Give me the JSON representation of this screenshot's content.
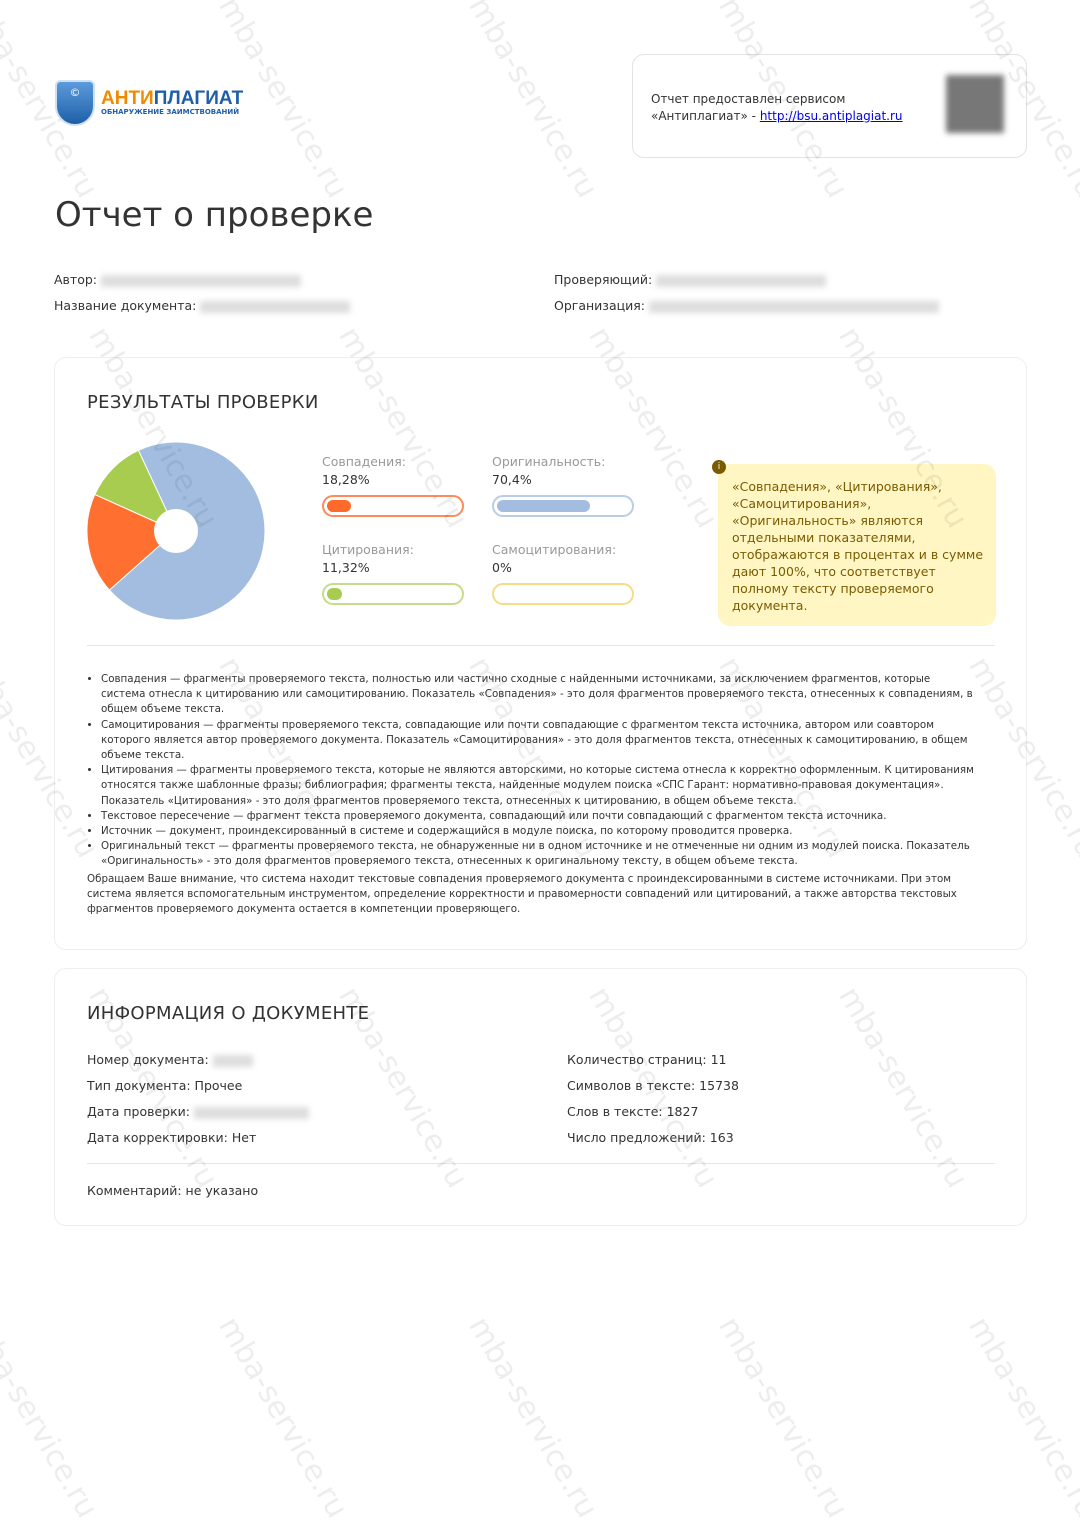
{
  "logo": {
    "name_orange": "АНТИ",
    "name_blue": "ПЛАГИАТ",
    "tagline": "ОБНАРУЖЕНИЕ ЗАИМСТВОВАНИЙ"
  },
  "provider": {
    "line1": "Отчет предоставлен сервисом",
    "line2": "«Антиплагиат» - ",
    "link": "http://bsu.antiplagiat.ru"
  },
  "title": "Отчет о проверке",
  "meta": {
    "author": "Автор:",
    "doc_name": "Название документа:",
    "checker": "Проверяющий:",
    "org": "Организация:"
  },
  "results": {
    "heading": "РЕЗУЛЬТАТЫ ПРОВЕРКИ",
    "metrics": [
      {
        "label": "Совпадения:",
        "value": "18,28%",
        "percent": 18.28,
        "color": "#ff6a2a",
        "border": "#ff8a5a"
      },
      {
        "label": "Оригинальность:",
        "value": "70,4%",
        "percent": 70.4,
        "color": "#a3bde0",
        "border": "#b8cde8"
      },
      {
        "label": "Цитирования:",
        "value": "11,32%",
        "percent": 11.32,
        "color": "#a8cc50",
        "border": "#c5dc8a"
      },
      {
        "label": "Самоцитирования:",
        "value": "0%",
        "percent": 0,
        "color": "#f5d86a",
        "border": "#f5dd88"
      }
    ],
    "pie_colors": {
      "match": "#ff7030",
      "original": "#a3bde0",
      "citation": "#a8cc50"
    },
    "note": "«Совпадения», «Цитирования», «Самоцитирования», «Оригинальность» являются отдельными показателями, отображаются в процентах и в сумме дают 100%, что соответствует полному тексту проверяемого документа.",
    "definitions": [
      "Совпадения — фрагменты проверяемого текста, полностью или частично сходные с найденными источниками, за исключением фрагментов, которые система отнесла к цитированию или самоцитированию. Показатель «Совпадения» - это доля фрагментов проверяемого текста, отнесенных к совпадениям, в общем объеме текста.",
      "Самоцитирования — фрагменты проверяемого текста, совпадающие или почти совпадающие с фрагментом текста источника, автором или соавтором которого является автор проверяемого документа. Показатель «Самоцитирования» - это доля фрагментов текста, отнесенных к самоцитированию, в общем объеме текста.",
      "Цитирования — фрагменты проверяемого текста, которые не являются авторскими, но которые система отнесла к корректно оформленным. К цитированиям относятся также шаблонные фразы; библиография; фрагменты текста, найденные модулем поиска «СПС Гарант: нормативно-правовая документация». Показатель «Цитирования» - это доля фрагментов проверяемого текста, отнесенных к цитированию, в общем объеме текста.",
      "Текстовое пересечение — фрагмент текста проверяемого документа, совпадающий или почти совпадающий с фрагментом текста источника.",
      "Источник — документ, проиндексированный в системе и содержащийся в модуле поиска, по которому проводится проверка.",
      "Оригинальный текст — фрагменты проверяемого текста, не обнаруженные ни в одном источнике и не отмеченные ни одним из модулей поиска. Показатель «Оригинальность» - это доля фрагментов проверяемого текста, отнесенных к оригинальному тексту, в общем объеме текста."
    ],
    "disclaimer": "Обращаем Ваше внимание, что система находит текстовые совпадения проверяемого документа с проиндексированными в системе источниками. При этом система является вспомогательным инструментом, определение корректности и правомерности совпадений или цитирований, а также авторства текстовых фрагментов проверяемого документа остается в компетенции проверяющего."
  },
  "docinfo": {
    "heading": "ИНФОРМАЦИЯ О ДОКУМЕНТЕ",
    "left": [
      "Номер документа:",
      "Тип документа: Прочее",
      "Дата проверки:",
      "Дата корректировки: Нет"
    ],
    "right": [
      "Количество страниц: 11",
      "Символов в тексте: 15738",
      "Слов в тексте: 1827",
      "Число предложений: 163"
    ],
    "comment": "Комментарий: не указано"
  },
  "watermark": "mba-service.ru"
}
